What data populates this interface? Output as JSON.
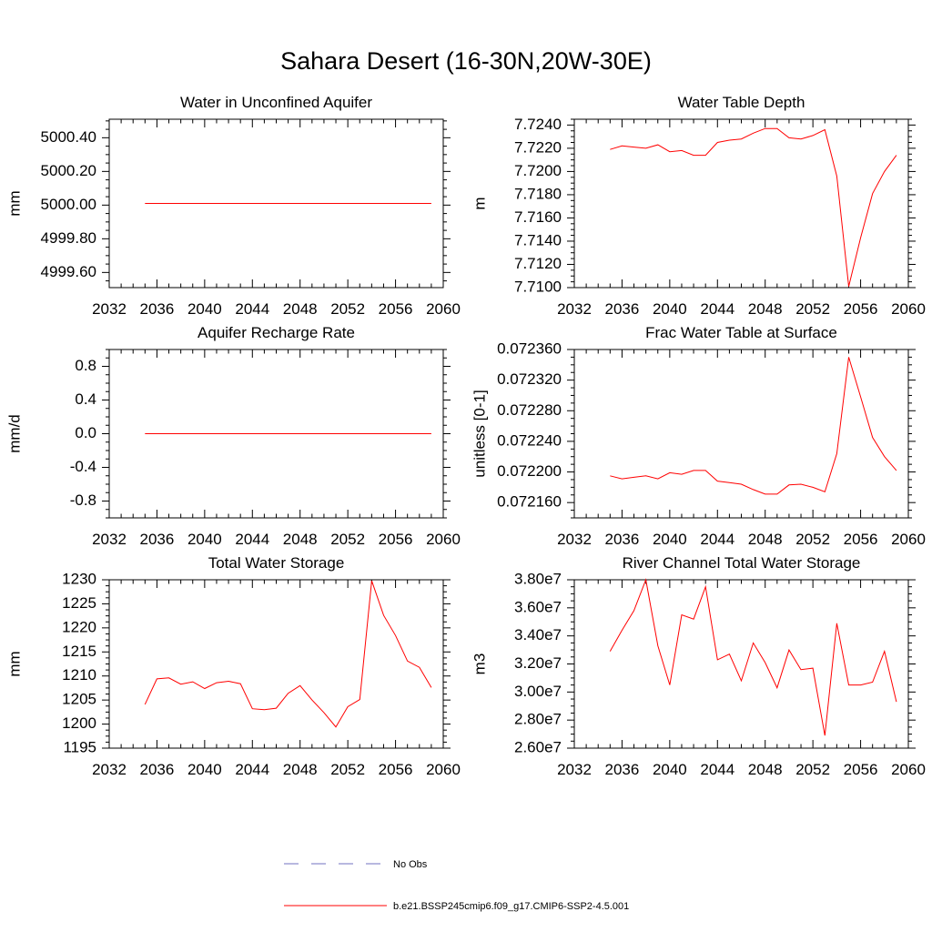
{
  "title": "Sahara Desert (16-30N,20W-30E)",
  "legend": [
    {
      "label": "No Obs",
      "style": "dashed",
      "color": "#7070c0"
    },
    {
      "label": "b.e21.BSSP245cmip6.f09_g17.CMIP6-SSP2-4.5.001",
      "style": "solid",
      "color": "#ff0000"
    }
  ],
  "series_color": "#ff0000",
  "chart_data": [
    {
      "type": "line",
      "title": "Water in Unconfined Aquifer",
      "ylabel": "mm",
      "xlim": [
        2032,
        2060
      ],
      "ylim": [
        4999.51,
        5000.51
      ],
      "xticks": [
        2032,
        2036,
        2040,
        2044,
        2048,
        2052,
        2056,
        2060
      ],
      "yticks": [
        4999.6,
        4999.8,
        5000.0,
        5000.2,
        5000.4
      ],
      "yticklabels": [
        "4999.60",
        "4999.80",
        "5000.00",
        "5000.20",
        "5000.40"
      ],
      "x": [
        2035,
        2036,
        2037,
        2038,
        2039,
        2040,
        2041,
        2042,
        2043,
        2044,
        2045,
        2046,
        2047,
        2048,
        2049,
        2050,
        2051,
        2052,
        2053,
        2054,
        2055,
        2056,
        2057,
        2058,
        2059
      ],
      "values": [
        5000.01,
        5000.01,
        5000.01,
        5000.01,
        5000.01,
        5000.01,
        5000.01,
        5000.01,
        5000.01,
        5000.01,
        5000.01,
        5000.01,
        5000.01,
        5000.01,
        5000.01,
        5000.01,
        5000.01,
        5000.01,
        5000.01,
        5000.01,
        5000.01,
        5000.01,
        5000.01,
        5000.01,
        5000.01
      ]
    },
    {
      "type": "line",
      "title": "Water Table Depth",
      "ylabel": "m",
      "xlim": [
        2032,
        2060
      ],
      "ylim": [
        7.71,
        7.7245
      ],
      "xticks": [
        2032,
        2036,
        2040,
        2044,
        2048,
        2052,
        2056,
        2060
      ],
      "yticks": [
        7.71,
        7.712,
        7.714,
        7.716,
        7.718,
        7.72,
        7.722,
        7.724
      ],
      "yticklabels": [
        "7.7100",
        "7.7120",
        "7.7140",
        "7.7160",
        "7.7180",
        "7.7200",
        "7.7220",
        "7.7240"
      ],
      "x": [
        2035,
        2036,
        2037,
        2038,
        2039,
        2040,
        2041,
        2042,
        2043,
        2044,
        2045,
        2046,
        2047,
        2048,
        2049,
        2050,
        2051,
        2052,
        2053,
        2054,
        2055,
        2056,
        2057,
        2058,
        2059
      ],
      "values": [
        7.7219,
        7.7222,
        7.7221,
        7.722,
        7.7223,
        7.7217,
        7.7218,
        7.7214,
        7.7214,
        7.7225,
        7.7227,
        7.7228,
        7.7233,
        7.7237,
        7.7237,
        7.7229,
        7.7228,
        7.7231,
        7.7236,
        7.7196,
        7.7101,
        7.7143,
        7.7181,
        7.72,
        7.7214
      ]
    },
    {
      "type": "line",
      "title": "Aquifer Recharge Rate",
      "ylabel": "mm/d",
      "xlim": [
        2032,
        2060
      ],
      "ylim": [
        -1.0,
        1.0
      ],
      "xticks": [
        2032,
        2036,
        2040,
        2044,
        2048,
        2052,
        2056,
        2060
      ],
      "yticks": [
        -0.8,
        -0.4,
        0.0,
        0.4,
        0.8
      ],
      "yticklabels": [
        "-0.8",
        "-0.4",
        "0.0",
        "0.4",
        "0.8"
      ],
      "x": [
        2035,
        2036,
        2037,
        2038,
        2039,
        2040,
        2041,
        2042,
        2043,
        2044,
        2045,
        2046,
        2047,
        2048,
        2049,
        2050,
        2051,
        2052,
        2053,
        2054,
        2055,
        2056,
        2057,
        2058,
        2059
      ],
      "values": [
        0.0,
        0.0,
        0.0,
        0.0,
        0.0,
        0.0,
        0.0,
        0.0,
        0.0,
        0.0,
        0.0,
        0.0,
        0.0,
        0.0,
        0.0,
        0.0,
        0.0,
        0.0,
        0.0,
        0.0,
        0.0,
        0.0,
        0.0,
        0.0,
        0.0
      ]
    },
    {
      "type": "line",
      "title": "Frac Water Table at Surface",
      "ylabel": "unitless [0-1]",
      "xlim": [
        2032,
        2060
      ],
      "ylim": [
        0.07214,
        0.07236
      ],
      "xticks": [
        2032,
        2036,
        2040,
        2044,
        2048,
        2052,
        2056,
        2060
      ],
      "yticks": [
        0.07216,
        0.0722,
        0.07224,
        0.07228,
        0.07232,
        0.07236
      ],
      "yticklabels": [
        "0.072160",
        "0.072200",
        "0.072240",
        "0.072280",
        "0.072320",
        "0.072360"
      ],
      "x": [
        2035,
        2036,
        2037,
        2038,
        2039,
        2040,
        2041,
        2042,
        2043,
        2044,
        2045,
        2046,
        2047,
        2048,
        2049,
        2050,
        2051,
        2052,
        2053,
        2054,
        2055,
        2056,
        2057,
        2058,
        2059
      ],
      "values": [
        0.072195,
        0.072191,
        0.072193,
        0.072195,
        0.072191,
        0.072199,
        0.072197,
        0.072202,
        0.072202,
        0.072188,
        0.072186,
        0.072184,
        0.072177,
        0.072171,
        0.072171,
        0.072183,
        0.072184,
        0.07218,
        0.072174,
        0.072224,
        0.07235,
        0.072298,
        0.072245,
        0.07222,
        0.072202
      ]
    },
    {
      "type": "line",
      "title": "Total Water Storage",
      "ylabel": "mm",
      "xlim": [
        2032,
        2060
      ],
      "ylim": [
        1195,
        1230
      ],
      "xticks": [
        2032,
        2036,
        2040,
        2044,
        2048,
        2052,
        2056,
        2060
      ],
      "yticks": [
        1195,
        1200,
        1205,
        1210,
        1215,
        1220,
        1225,
        1230
      ],
      "yticklabels": [
        "1195",
        "1200",
        "1205",
        "1210",
        "1215",
        "1220",
        "1225",
        "1230"
      ],
      "x": [
        2035,
        2036,
        2037,
        2038,
        2039,
        2040,
        2041,
        2042,
        2043,
        2044,
        2045,
        2046,
        2047,
        2048,
        2049,
        2050,
        2051,
        2052,
        2053,
        2054,
        2055,
        2056,
        2057,
        2058,
        2059
      ],
      "values": [
        1204.1,
        1209.4,
        1209.6,
        1208.3,
        1208.8,
        1207.4,
        1208.6,
        1208.9,
        1208.4,
        1203.2,
        1203.0,
        1203.3,
        1206.4,
        1208.0,
        1205.0,
        1202.4,
        1199.4,
        1203.6,
        1205.1,
        1229.8,
        1222.6,
        1218.4,
        1213.1,
        1211.8,
        1207.6
      ]
    },
    {
      "type": "line",
      "title": "River Channel Total Water Storage",
      "ylabel": "m3",
      "xlim": [
        2032,
        2060
      ],
      "ylim": [
        26000000,
        38000000
      ],
      "xticks": [
        2032,
        2036,
        2040,
        2044,
        2048,
        2052,
        2056,
        2060
      ],
      "yticks": [
        26000000,
        28000000,
        30000000,
        32000000,
        34000000,
        36000000,
        38000000
      ],
      "yticklabels": [
        "2.60e7",
        "2.80e7",
        "3.00e7",
        "3.20e7",
        "3.40e7",
        "3.60e7",
        "3.80e7"
      ],
      "x": [
        2035,
        2036,
        2037,
        2038,
        2039,
        2040,
        2041,
        2042,
        2043,
        2044,
        2045,
        2046,
        2047,
        2048,
        2049,
        2050,
        2051,
        2052,
        2053,
        2054,
        2055,
        2056,
        2057,
        2058,
        2059
      ],
      "values": [
        32900000,
        34400000,
        35800000,
        38000000,
        33300000,
        30500000,
        35500000,
        35200000,
        37500000,
        32300000,
        32700000,
        30800000,
        33500000,
        32100000,
        30300000,
        33000000,
        31600000,
        31700000,
        26900000,
        34900000,
        30500000,
        30500000,
        30700000,
        32900000,
        29300000
      ]
    }
  ]
}
